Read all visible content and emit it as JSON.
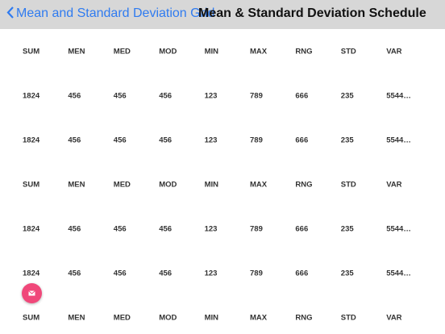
{
  "nav": {
    "back": "Mean and Standard Deviation Grid",
    "title": "Mean & Standard Deviation Schedule"
  },
  "table": {
    "rows": [
      [
        "SUM",
        "MEN",
        "MED",
        "MOD",
        "MIN",
        "MAX",
        "RNG",
        "STD",
        "VAR"
      ],
      [
        "1824",
        "456",
        "456",
        "456",
        "123",
        "789",
        "666",
        "235",
        "5544…"
      ],
      [
        "1824",
        "456",
        "456",
        "456",
        "123",
        "789",
        "666",
        "235",
        "5544…"
      ],
      [
        "SUM",
        "MEN",
        "MED",
        "MOD",
        "MIN",
        "MAX",
        "RNG",
        "STD",
        "VAR"
      ],
      [
        "1824",
        "456",
        "456",
        "456",
        "123",
        "789",
        "666",
        "235",
        "5544…"
      ],
      [
        "1824",
        "456",
        "456",
        "456",
        "123",
        "789",
        "666",
        "235",
        "5544…"
      ],
      [
        "SUM",
        "MEN",
        "MED",
        "MOD",
        "MIN",
        "MAX",
        "RNG",
        "STD",
        "VAR"
      ]
    ]
  }
}
